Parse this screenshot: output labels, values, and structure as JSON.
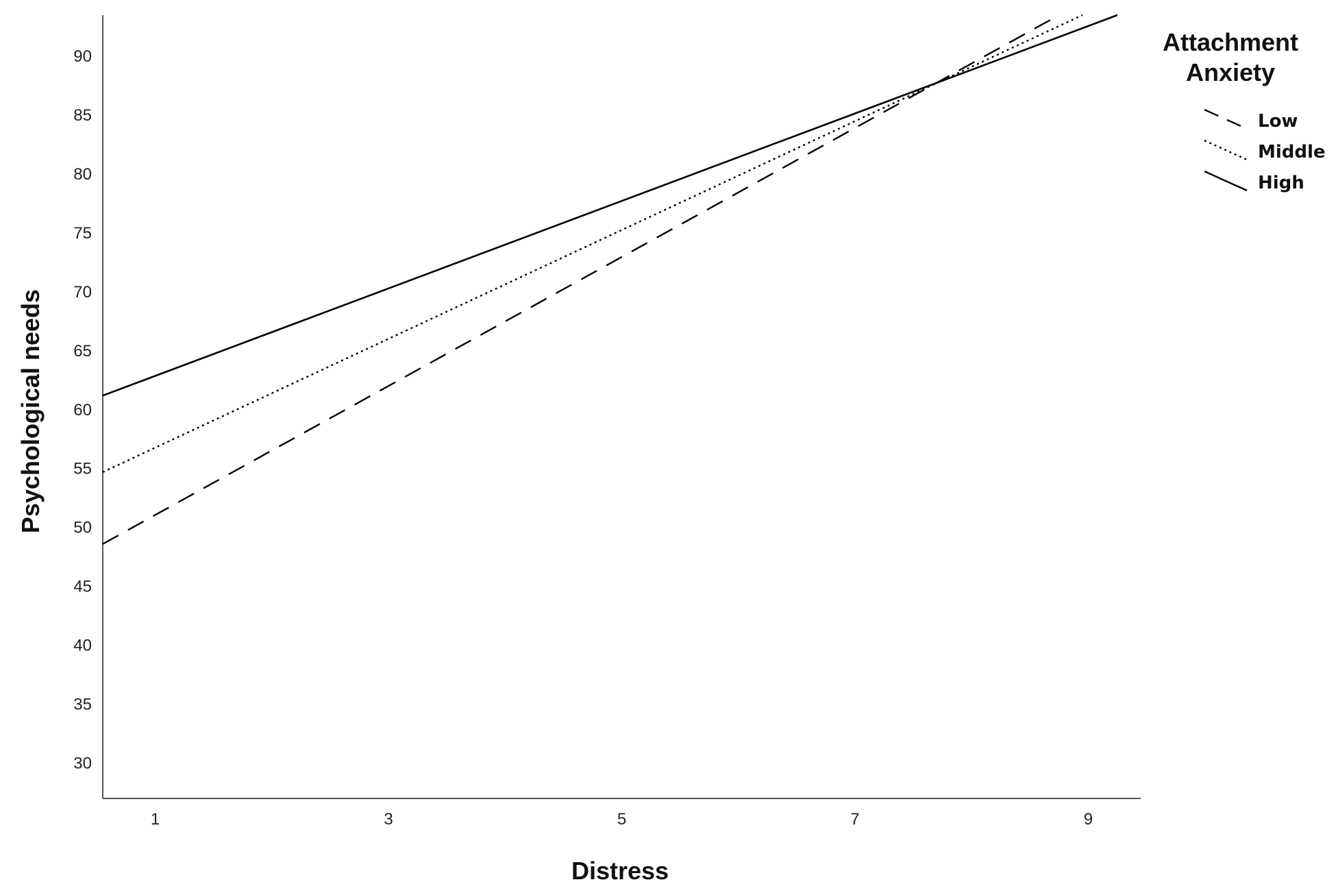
{
  "chart_data": {
    "type": "line",
    "xlabel": "Distress",
    "ylabel": "Psychological needs",
    "xlim": [
      0.55,
      9.45
    ],
    "ylim": [
      27,
      93.5
    ],
    "x_ticks": [
      1,
      3,
      5,
      7,
      9
    ],
    "y_ticks": [
      30,
      35,
      40,
      45,
      50,
      55,
      60,
      65,
      70,
      75,
      80,
      85,
      90
    ],
    "legend": {
      "title_lines": [
        "Attachment",
        "Anxiety"
      ],
      "placement": "top-right"
    },
    "series": [
      {
        "name": "Low",
        "style": "dashed",
        "x": [
          0.55,
          8.75
        ],
        "y": [
          48.6,
          93.5
        ]
      },
      {
        "name": "Middle",
        "style": "dotted",
        "x": [
          0.55,
          8.95
        ],
        "y": [
          54.7,
          93.5
        ]
      },
      {
        "name": "High",
        "style": "solid",
        "x": [
          0.55,
          9.25
        ],
        "y": [
          61.2,
          93.5
        ]
      }
    ],
    "grid": false,
    "line_color": "#000000"
  }
}
